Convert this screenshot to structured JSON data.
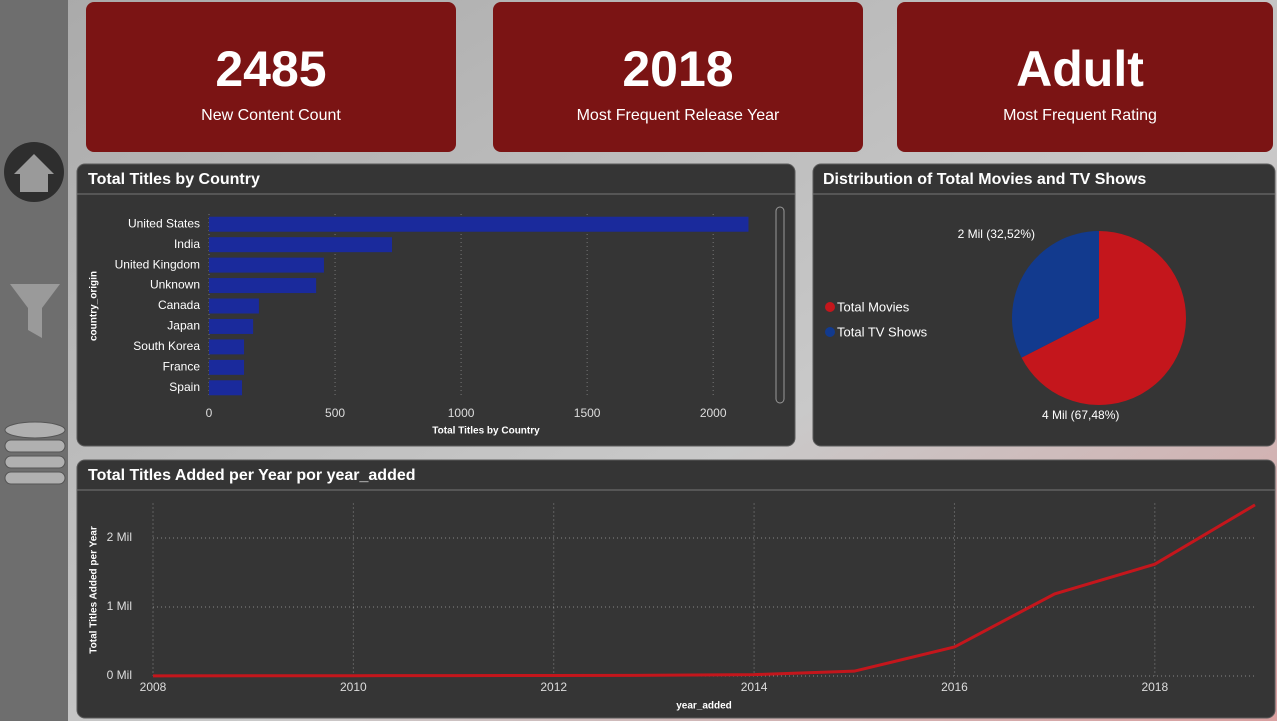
{
  "cards": [
    {
      "value": "2485",
      "label": "New Content Count"
    },
    {
      "value": "2018",
      "label": "Most Frequent Release Year"
    },
    {
      "value": "Adult",
      "label": "Most Frequent Rating"
    }
  ],
  "chart_data": [
    {
      "type": "bar",
      "title": "Total Titles by Country",
      "x_label": "Total Titles by Country",
      "y_label": "country_origin",
      "categories": [
        "United States",
        "India",
        "United Kingdom",
        "Unknown",
        "Canada",
        "Japan",
        "South Korea",
        "France",
        "Spain"
      ],
      "values": [
        2140,
        726,
        456,
        425,
        198,
        175,
        139,
        139,
        131
      ],
      "color": "#1a2a9c",
      "xlim": [
        0,
        2150
      ],
      "xticks": [
        0,
        500,
        1000,
        1500,
        2000
      ],
      "grid": true
    },
    {
      "type": "pie",
      "title": "Distribution of Total Movies and TV Shows",
      "categories": [
        "Total Movies",
        "Total TV Shows"
      ],
      "values": [
        67.48,
        32.52
      ],
      "value_labels": [
        "4 Mil (67,48%)",
        "2 Mil (32,52%)"
      ],
      "colors": [
        "#c4161c",
        "#123a8e"
      ],
      "legend": "left"
    },
    {
      "type": "line",
      "title": "Total Titles Added per Year por year_added",
      "x_label": "year_added",
      "y_label": "Total Titles Added per Year",
      "x": [
        2008,
        2009,
        2010,
        2011,
        2012,
        2013,
        2014,
        2015,
        2016,
        2017,
        2018,
        2019
      ],
      "values": [
        0.002,
        0.004,
        0.004,
        0.006,
        0.007,
        0.01,
        0.02,
        0.07,
        0.42,
        1.19,
        1.62,
        2.48
      ],
      "color": "#c4161c",
      "xlim": [
        2008,
        2019
      ],
      "xticks": [
        2008,
        2010,
        2012,
        2014,
        2016,
        2018
      ],
      "ylim": [
        0,
        2.5
      ],
      "yticks": [
        {
          "value": 0,
          "label": "0 Mil"
        },
        {
          "value": 1,
          "label": "1 Mil"
        },
        {
          "value": 2,
          "label": "2 Mil"
        }
      ],
      "grid": true
    }
  ]
}
